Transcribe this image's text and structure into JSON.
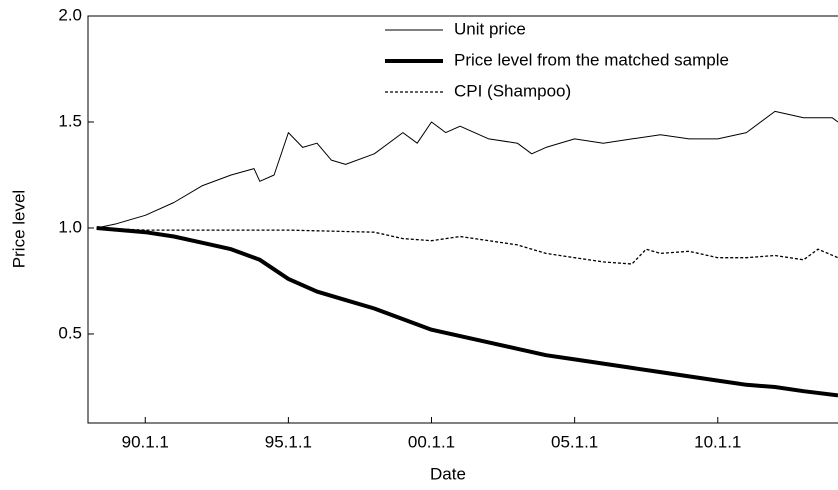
{
  "chart_data": {
    "type": "line",
    "xlabel": "Date",
    "ylabel": "Price level",
    "xlim": [
      1988.0,
      2014.2
    ],
    "ylim": [
      0.08,
      2.0
    ],
    "xticks": [
      {
        "value": 1990,
        "label": "90.1.1"
      },
      {
        "value": 1995,
        "label": "95.1.1"
      },
      {
        "value": 2000,
        "label": "00.1.1"
      },
      {
        "value": 2005,
        "label": "05.1.1"
      },
      {
        "value": 2010,
        "label": "10.1.1"
      }
    ],
    "yticks": [
      0.5,
      {
        "value": 1,
        "label": "1.0"
      },
      1.5,
      {
        "value": 2,
        "label": "2.0"
      }
    ],
    "grid": false,
    "legend": "top-right",
    "series": [
      {
        "name": "Unit price",
        "color": "#000000",
        "line_width": 1,
        "dash": false,
        "x": [
          1988.3,
          1989,
          1990,
          1991,
          1992,
          1993,
          1993.8,
          1994,
          1994.5,
          1995,
          1995.5,
          1996,
          1996.5,
          1997,
          1998,
          1999,
          1999.5,
          2000,
          2000.5,
          2001,
          2002,
          2003,
          2003.5,
          2004,
          2005,
          2006,
          2007,
          2008,
          2009,
          2010,
          2011,
          2012,
          2013,
          2014,
          2014.2
        ],
        "values": [
          1.0,
          1.02,
          1.06,
          1.12,
          1.2,
          1.25,
          1.28,
          1.22,
          1.25,
          1.45,
          1.38,
          1.4,
          1.32,
          1.3,
          1.35,
          1.45,
          1.4,
          1.5,
          1.45,
          1.48,
          1.42,
          1.4,
          1.35,
          1.38,
          1.42,
          1.4,
          1.42,
          1.44,
          1.42,
          1.42,
          1.45,
          1.55,
          1.52,
          1.52,
          1.5
        ]
      },
      {
        "name": "Price level from the matched sample",
        "color": "#000000",
        "line_width": 4,
        "dash": false,
        "x": [
          1988.3,
          1990,
          1991,
          1992,
          1993,
          1994,
          1995,
          1996,
          1997,
          1998,
          1999,
          2000,
          2001,
          2002,
          2003,
          2004,
          2005,
          2006,
          2007,
          2008,
          2009,
          2010,
          2011,
          2012,
          2013,
          2014.2
        ],
        "values": [
          1.0,
          0.98,
          0.96,
          0.93,
          0.9,
          0.85,
          0.76,
          0.7,
          0.66,
          0.62,
          0.57,
          0.52,
          0.49,
          0.46,
          0.43,
          0.4,
          0.38,
          0.36,
          0.34,
          0.32,
          0.3,
          0.28,
          0.26,
          0.25,
          0.23,
          0.21
        ]
      },
      {
        "name": "CPI (Shampoo)",
        "color": "#000000",
        "line_width": 1.3,
        "dash": true,
        "x": [
          1988.3,
          1990,
          1993,
          1995,
          1998,
          1999,
          2000,
          2001,
          2002,
          2003,
          2004,
          2005,
          2006,
          2007,
          2007.5,
          2008,
          2009,
          2010,
          2011,
          2012,
          2013,
          2013.5,
          2014.2
        ],
        "values": [
          1.0,
          0.99,
          0.99,
          0.99,
          0.98,
          0.95,
          0.94,
          0.96,
          0.94,
          0.92,
          0.88,
          0.86,
          0.84,
          0.83,
          0.9,
          0.88,
          0.89,
          0.86,
          0.86,
          0.87,
          0.85,
          0.9,
          0.86
        ]
      }
    ]
  }
}
